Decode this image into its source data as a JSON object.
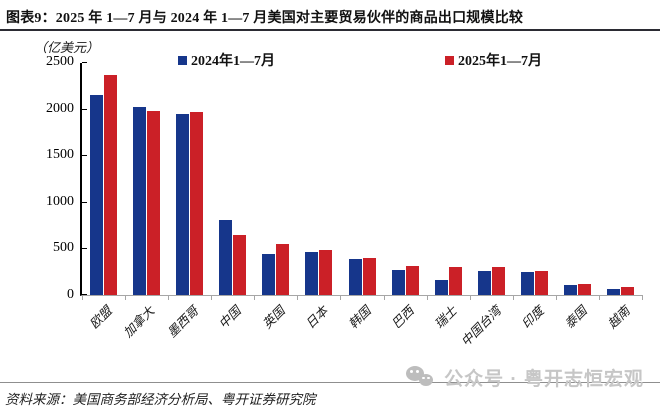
{
  "figure": {
    "title": "图表9：2025 年 1—7 月与 2024 年 1—7 月美国对主要贸易伙伴的商品出口规模比较",
    "unit_label": "（亿美元）",
    "source": "资料来源：美国商务部经济分析局、粤开证券研究院",
    "watermark_text": "公众号 · 粤开志恒宏观"
  },
  "chart_data": {
    "type": "bar",
    "title": "2025年1—7月与2024年1—7月美国对主要贸易伙伴的商品出口规模比较",
    "ylabel": "（亿美元）",
    "categories": [
      "欧盟",
      "加拿大",
      "墨西哥",
      "中国",
      "英国",
      "日本",
      "韩国",
      "巴西",
      "瑞士",
      "中国台湾",
      "印度",
      "泰国",
      "越南"
    ],
    "series": [
      {
        "name": "2024年1—7月",
        "color": "#16368B",
        "values": [
          2150,
          2030,
          1950,
          810,
          440,
          460,
          385,
          270,
          160,
          255,
          245,
          110,
          70
        ]
      },
      {
        "name": "2025年1—7月",
        "color": "#CB2027",
        "values": [
          2370,
          1980,
          1970,
          650,
          550,
          480,
          395,
          310,
          300,
          305,
          255,
          120,
          85
        ]
      }
    ],
    "ylim": [
      0,
      2500
    ],
    "yticks": [
      0,
      500,
      1000,
      1500,
      2000,
      2500
    ],
    "grid": false,
    "legend_position": "top"
  }
}
